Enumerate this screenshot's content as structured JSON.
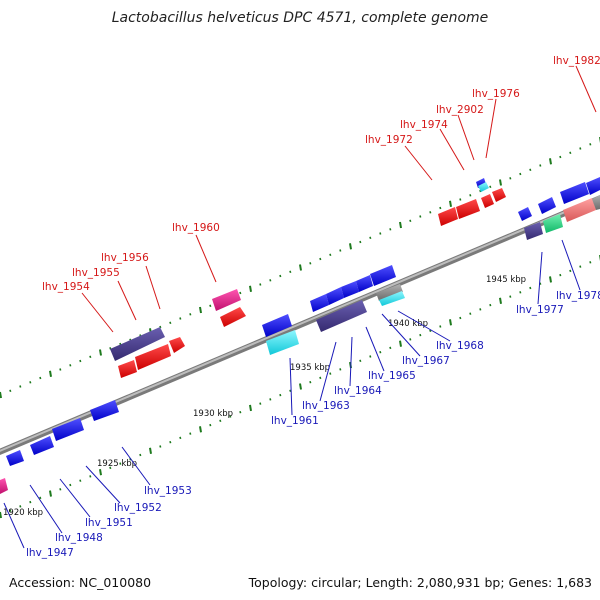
{
  "title": "Lactobacillus helveticus DPC 4571, complete genome",
  "footer": {
    "accession": "Accession: NC_010080",
    "summary": "Topology: circular; Length: 2,080,931 bp; Genes: 1,683"
  },
  "colors": {
    "backbone": "#8e8e8e",
    "tick": "#1e7a1e",
    "forward_label": "#d51818",
    "reverse_label": "#1919b8",
    "blue_gene": "#1010e0",
    "red_gene": "#ee1010",
    "purple_gene": "#4b3f8f",
    "magenta_gene": "#e0208a",
    "cyan_gene": "#20e0e8",
    "green_gene": "#20d880",
    "pink_gene": "#f07878"
  },
  "scale_labels": [
    {
      "text": "1920 kbp"
    },
    {
      "text": "1925 kbp"
    },
    {
      "text": "1930 kbp"
    },
    {
      "text": "1935 kbp"
    },
    {
      "text": "1940 kbp"
    },
    {
      "text": "1945 kbp"
    }
  ],
  "forward_genes": [
    {
      "label": "lhv_1954"
    },
    {
      "label": "lhv_1955"
    },
    {
      "label": "lhv_1956"
    },
    {
      "label": "lhv_1960"
    },
    {
      "label": "lhv_1972"
    },
    {
      "label": "lhv_1974"
    },
    {
      "label": "lhv_2902"
    },
    {
      "label": "lhv_1976"
    },
    {
      "label": "lhv_1982"
    }
  ],
  "reverse_genes": [
    {
      "label": "lhv_1947"
    },
    {
      "label": "lhv_1948"
    },
    {
      "label": "lhv_1951"
    },
    {
      "label": "lhv_1952"
    },
    {
      "label": "lhv_1953"
    },
    {
      "label": "lhv_1961"
    },
    {
      "label": "lhv_1963"
    },
    {
      "label": "lhv_1964"
    },
    {
      "label": "lhv_1965"
    },
    {
      "label": "lhv_1967"
    },
    {
      "label": "lhv_1968"
    },
    {
      "label": "lhv_1977"
    },
    {
      "label": "lhv_1978"
    }
  ]
}
